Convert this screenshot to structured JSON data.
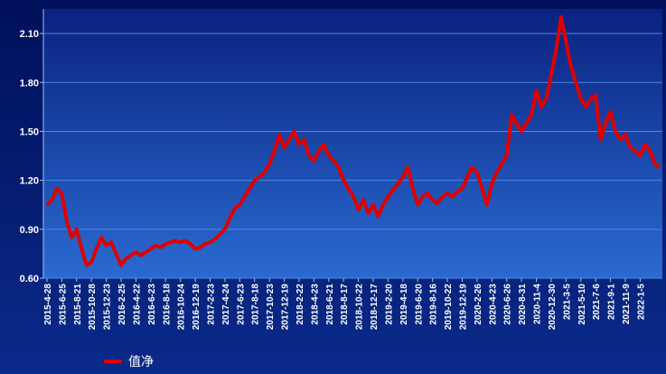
{
  "chart_data": {
    "type": "line",
    "categories": [
      "2015-4-28",
      null,
      null,
      "2015-6-25",
      null,
      null,
      "2015-8-21",
      null,
      null,
      "2015-10-28",
      null,
      null,
      "2015-12-23",
      null,
      null,
      "2016-2-25",
      null,
      null,
      "2016-4-22",
      null,
      null,
      "2016-6-23",
      null,
      null,
      "2016-8-18",
      null,
      null,
      "2016-10-24",
      null,
      null,
      "2016-12-19",
      null,
      null,
      "2017-2-23",
      null,
      null,
      "2017-4-24",
      null,
      null,
      "2017-6-23",
      null,
      null,
      "2017-8-18",
      null,
      null,
      "2017-10-23",
      null,
      null,
      "2017-12-19",
      null,
      null,
      "2018-2-22",
      null,
      null,
      "2018-4-23",
      null,
      null,
      "2018-6-21",
      null,
      null,
      "2018-8-17",
      null,
      null,
      "2018-10-22",
      null,
      null,
      "2018-12-17",
      null,
      null,
      "2019-2-20",
      null,
      null,
      "2019-4-18",
      null,
      null,
      "2019-6-20",
      null,
      null,
      "2019-8-16",
      null,
      null,
      "2019-10-22",
      null,
      null,
      "2019-12-19",
      null,
      null,
      "2020-2-26",
      null,
      null,
      "2020-4-23",
      null,
      null,
      "2020-6-26",
      null,
      null,
      "2020-8-31",
      null,
      null,
      "2020-11-4",
      null,
      null,
      "2020-12-30",
      null,
      null,
      "2021-3-5",
      null,
      null,
      "2021-5-10",
      null,
      null,
      "2021-7-6",
      null,
      null,
      "2021-9-1",
      null,
      null,
      "2021-11-9",
      null,
      null,
      "2022-1-5",
      null,
      null,
      null,
      null
    ],
    "series": [
      {
        "name": "值净",
        "color": "#e00000",
        "values": [
          1.05,
          1.08,
          1.15,
          1.12,
          0.95,
          0.85,
          0.9,
          0.78,
          0.68,
          0.7,
          0.78,
          0.85,
          0.8,
          0.82,
          0.75,
          0.68,
          0.72,
          0.74,
          0.76,
          0.74,
          0.76,
          0.78,
          0.8,
          0.79,
          0.81,
          0.82,
          0.83,
          0.82,
          0.83,
          0.81,
          0.78,
          0.79,
          0.81,
          0.82,
          0.84,
          0.87,
          0.9,
          0.97,
          1.03,
          1.05,
          1.1,
          1.15,
          1.2,
          1.22,
          1.25,
          1.3,
          1.38,
          1.48,
          1.4,
          1.45,
          1.5,
          1.42,
          1.45,
          1.35,
          1.32,
          1.38,
          1.42,
          1.35,
          1.32,
          1.28,
          1.2,
          1.15,
          1.1,
          1.02,
          1.08,
          1.0,
          1.05,
          0.98,
          1.05,
          1.1,
          1.14,
          1.18,
          1.22,
          1.28,
          1.15,
          1.05,
          1.1,
          1.12,
          1.08,
          1.06,
          1.1,
          1.12,
          1.1,
          1.13,
          1.15,
          1.22,
          1.28,
          1.25,
          1.15,
          1.05,
          1.18,
          1.25,
          1.3,
          1.35,
          1.6,
          1.55,
          1.5,
          1.55,
          1.6,
          1.75,
          1.65,
          1.7,
          1.85,
          2.0,
          2.2,
          2.05,
          1.9,
          1.8,
          1.7,
          1.65,
          1.7,
          1.72,
          1.45,
          1.55,
          1.62,
          1.5,
          1.45,
          1.48,
          1.4,
          1.38,
          1.35,
          1.42,
          1.38,
          1.3,
          1.28
        ]
      }
    ],
    "ylim": [
      0.6,
      2.25
    ],
    "yticks": [
      {
        "value": 0.6,
        "label": "0.60"
      },
      {
        "value": 0.9,
        "label": "0.90"
      },
      {
        "value": 1.2,
        "label": "1.20"
      },
      {
        "value": 1.5,
        "label": "1.50"
      },
      {
        "value": 1.8,
        "label": "1.80"
      },
      {
        "value": 2.1,
        "label": "2.10"
      }
    ],
    "grid": true
  }
}
